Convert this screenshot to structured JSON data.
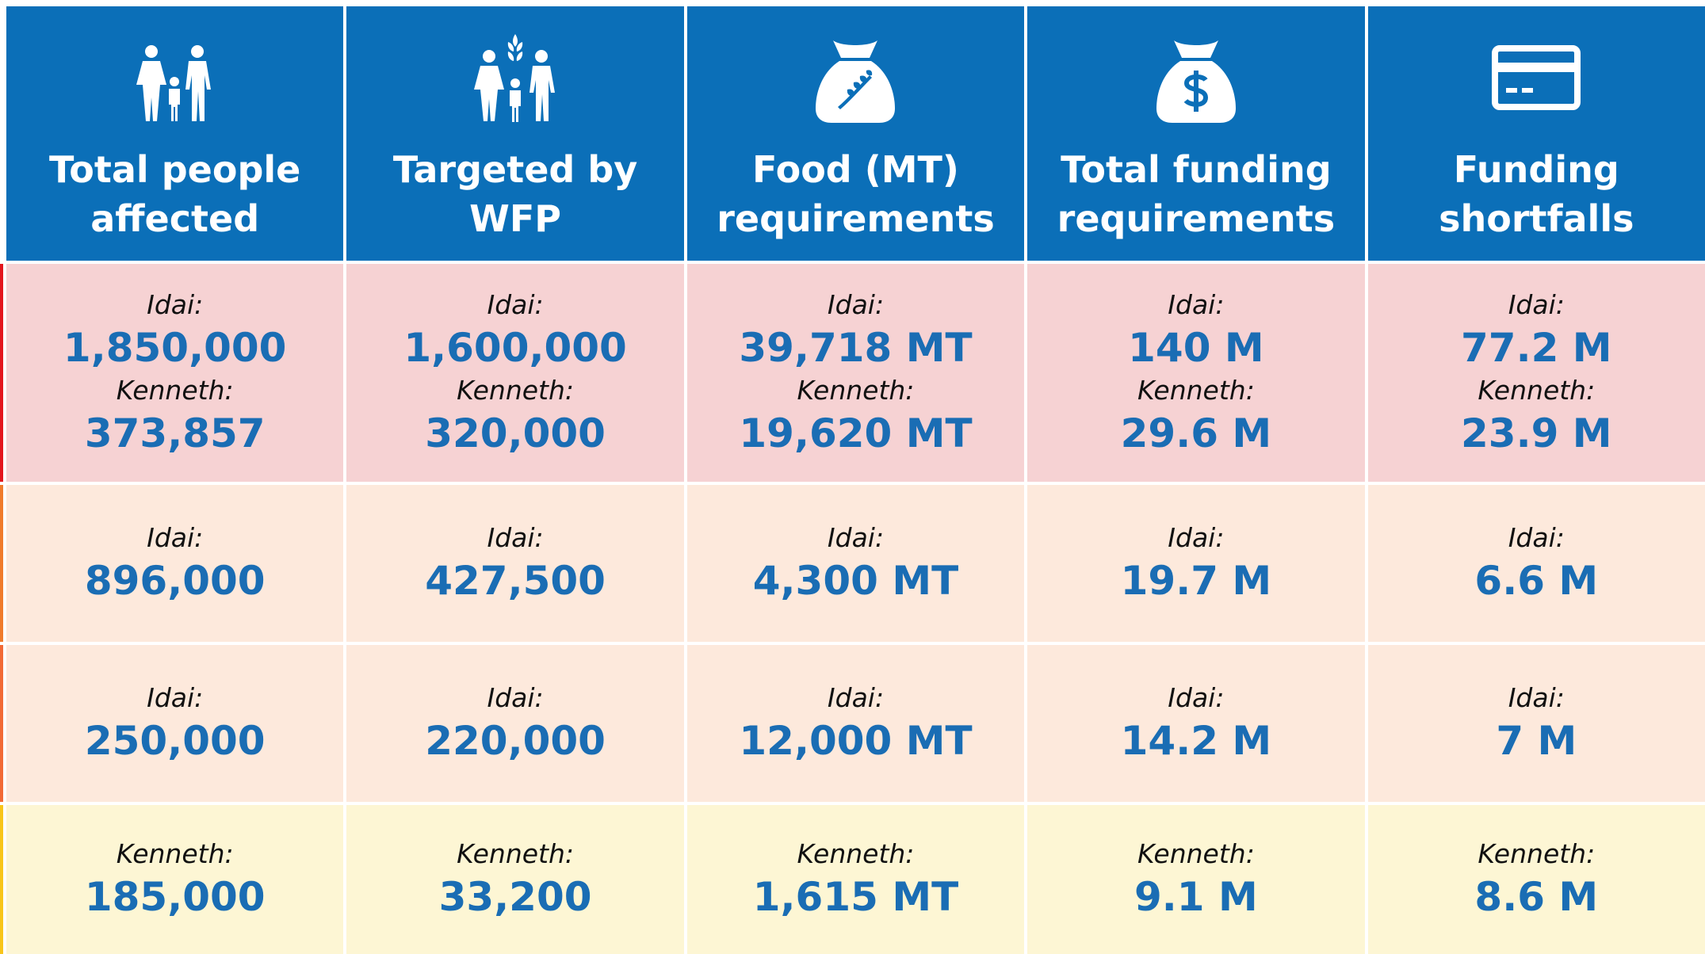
{
  "header": {
    "columns": [
      {
        "title": [
          "Total people",
          "affected"
        ]
      },
      {
        "title": [
          "Targeted by",
          "WFP"
        ]
      },
      {
        "title": [
          "Food (MT)",
          "requirements"
        ]
      },
      {
        "title": [
          "Total funding",
          "requirements"
        ]
      },
      {
        "title": [
          "Funding",
          "shortfalls"
        ]
      }
    ]
  },
  "table": {
    "rows": [
      {
        "color": "#f6d2d3",
        "accent": "#e3151d",
        "cells": [
          [
            {
              "label": "Idai:",
              "value": "1,850,000"
            },
            {
              "label": "Kenneth:",
              "value": "373,857"
            }
          ],
          [
            {
              "label": "Idai:",
              "value": "1,600,000"
            },
            {
              "label": "Kenneth:",
              "value": "320,000"
            }
          ],
          [
            {
              "label": "Idai:",
              "value": "39,718 MT"
            },
            {
              "label": "Kenneth:",
              "value": "19,620 MT"
            }
          ],
          [
            {
              "label": "Idai:",
              "value": "140 M"
            },
            {
              "label": "Kenneth:",
              "value": "29.6 M"
            }
          ],
          [
            {
              "label": "Idai:",
              "value": "77.2 M"
            },
            {
              "label": "Kenneth:",
              "value": "23.9 M"
            }
          ]
        ]
      },
      {
        "color": "#fde9dc",
        "accent": "#f07b2c",
        "cells": [
          [
            {
              "label": "Idai:",
              "value": "896,000"
            }
          ],
          [
            {
              "label": "Idai:",
              "value": "427,500"
            }
          ],
          [
            {
              "label": "Idai:",
              "value": "4,300 MT"
            }
          ],
          [
            {
              "label": "Idai:",
              "value": "19.7 M"
            }
          ],
          [
            {
              "label": "Idai:",
              "value": "6.6 M"
            }
          ]
        ]
      },
      {
        "color": "#fde9dc",
        "accent": "#f26a36",
        "cells": [
          [
            {
              "label": "Idai:",
              "value": "250,000"
            }
          ],
          [
            {
              "label": "Idai:",
              "value": "220,000"
            }
          ],
          [
            {
              "label": "Idai:",
              "value": "12,000 MT"
            }
          ],
          [
            {
              "label": "Idai:",
              "value": "14.2 M"
            }
          ],
          [
            {
              "label": "Idai:",
              "value": "7 M"
            }
          ]
        ]
      },
      {
        "color": "#fdf6d4",
        "accent": "#f8c51b",
        "cells": [
          [
            {
              "label": "Kenneth:",
              "value": "185,000"
            }
          ],
          [
            {
              "label": "Kenneth:",
              "value": "33,200"
            }
          ],
          [
            {
              "label": "Kenneth:",
              "value": "1,615 MT"
            }
          ],
          [
            {
              "label": "Kenneth:",
              "value": "9.1 M"
            }
          ],
          [
            {
              "label": "Kenneth:",
              "value": "8.6 M"
            }
          ]
        ]
      }
    ]
  }
}
